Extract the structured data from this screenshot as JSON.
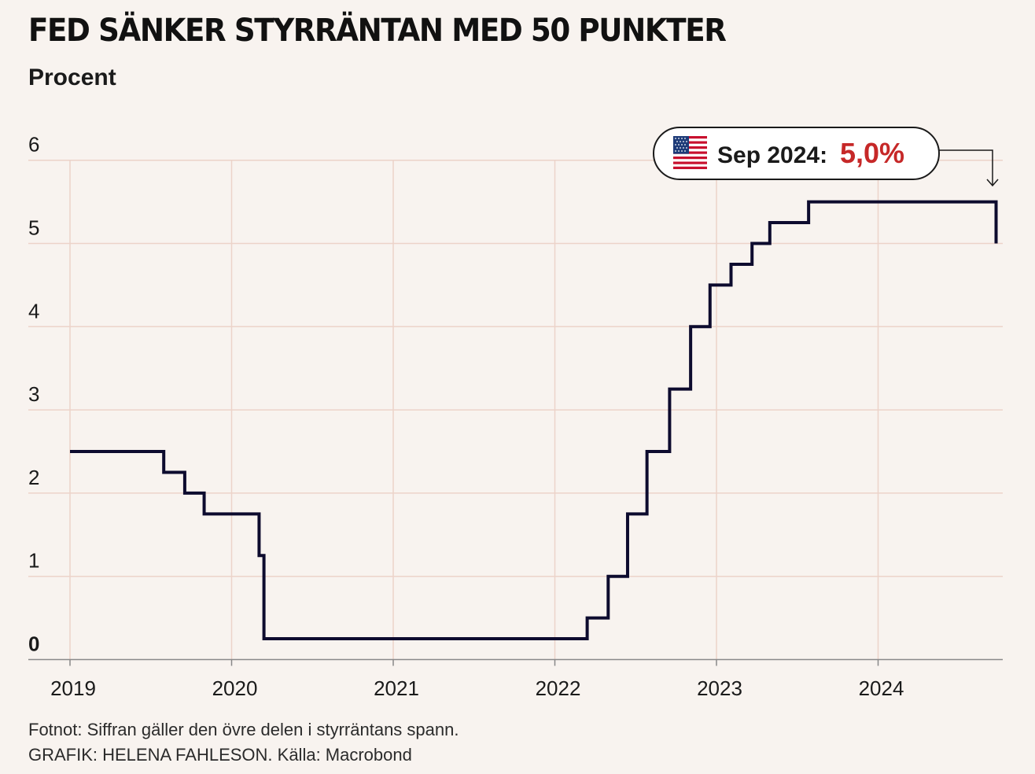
{
  "title": "FED SÄNKER STYRRÄNTAN MED 50 PUNKTER",
  "subtitle": "Procent",
  "footnote": "Fotnot: Siffran gäller den övre delen i styrräntans spann.",
  "credit": "GRAFIK: HELENA FAHLESON. Källa: Macrobond",
  "callout": {
    "label": "Sep 2024:",
    "value": "5,0%",
    "icon": "us-flag-icon",
    "value_color": "#c62828"
  },
  "colors": {
    "line": "#0d0b2e",
    "grid": "#ecd3c9",
    "background": "#f8f3ef"
  },
  "chart_data": {
    "type": "line",
    "step": true,
    "title": "FED SÄNKER STYRRÄNTAN MED 50 PUNKTER",
    "ylabel": "Procent",
    "xlabel": "",
    "xlim": [
      2019.0,
      2024.8
    ],
    "ylim": [
      0,
      6
    ],
    "x_ticks": [
      2019,
      2020,
      2021,
      2022,
      2023,
      2024
    ],
    "x_tick_labels": [
      "2019",
      "2020",
      "2021",
      "2022",
      "2023",
      "2024"
    ],
    "y_ticks": [
      0,
      1,
      2,
      3,
      4,
      5,
      6
    ],
    "y_tick_labels": [
      "0",
      "1",
      "2",
      "3",
      "4",
      "5",
      "6"
    ],
    "grid": true,
    "series": [
      {
        "points": [
          [
            2019.0,
            2.5
          ],
          [
            2019.58,
            2.25
          ],
          [
            2019.71,
            2.0
          ],
          [
            2019.83,
            1.75
          ],
          [
            2020.17,
            1.25
          ],
          [
            2020.2,
            0.25
          ],
          [
            2022.2,
            0.5
          ],
          [
            2022.33,
            1.0
          ],
          [
            2022.45,
            1.75
          ],
          [
            2022.57,
            2.5
          ],
          [
            2022.71,
            3.25
          ],
          [
            2022.84,
            4.0
          ],
          [
            2022.96,
            4.5
          ],
          [
            2023.09,
            4.75
          ],
          [
            2023.22,
            5.0
          ],
          [
            2023.33,
            5.25
          ],
          [
            2023.57,
            5.5
          ],
          [
            2024.73,
            5.0
          ]
        ]
      }
    ]
  }
}
